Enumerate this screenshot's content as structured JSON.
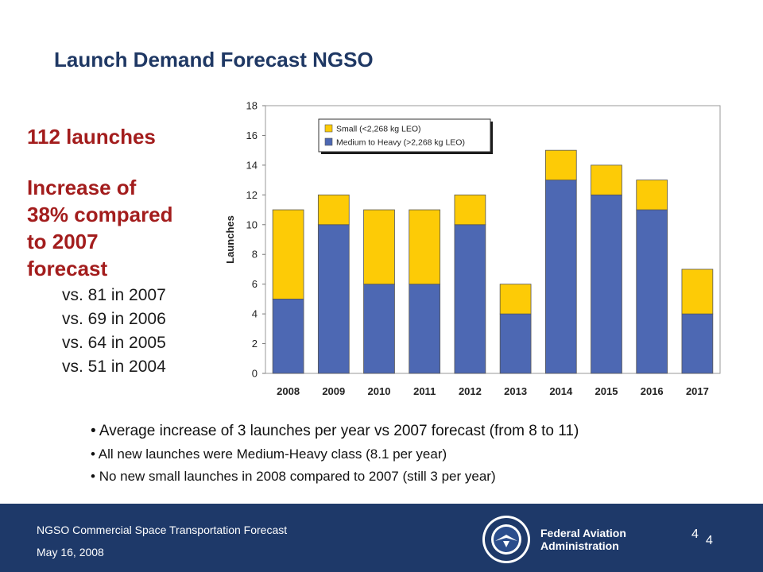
{
  "slide": {
    "title": "Launch Demand Forecast NGSO",
    "headline": "112 launches",
    "increase_text": [
      "Increase of",
      "38% compared",
      "to 2007",
      "forecast"
    ],
    "comparisons": [
      "vs. 81 in 2007",
      "vs. 69 in 2006",
      "vs. 64 in 2005",
      "vs. 51 in 2004"
    ],
    "bullets": [
      "Average increase of 3 launches per year vs 2007 forecast (from 8 to 11)",
      "All new launches were Medium-Heavy class  (8.1 per year)",
      "No new small launches in 2008 compared to 2007 (still 3 per year)"
    ]
  },
  "footer": {
    "presentation_title": "NGSO Commercial Space Transportation Forecast",
    "date": "May 16, 2008",
    "agency": [
      "Federal Aviation",
      "Administration"
    ],
    "page_number": "4",
    "page_number_duplicate": "4"
  },
  "colors": {
    "title": "#1f3864",
    "highlight_red": "#a31d1d",
    "footer_bg": "#1e3969",
    "small_series": "#fdcb06",
    "medium_heavy_series": "#4d68b3"
  },
  "chart_data": {
    "type": "bar",
    "stacked": true,
    "categories": [
      "2008",
      "2009",
      "2010",
      "2011",
      "2012",
      "2013",
      "2014",
      "2015",
      "2016",
      "2017"
    ],
    "series": [
      {
        "name": "Medium to Heavy (>2,268 kg LEO)",
        "values": [
          5,
          10,
          6,
          6,
          10,
          4,
          13,
          12,
          11,
          4
        ],
        "color": "#4d68b3"
      },
      {
        "name": "Small (<2,268 kg LEO)",
        "values": [
          6,
          2,
          5,
          5,
          2,
          2,
          2,
          2,
          2,
          3
        ],
        "color": "#fdcb06"
      }
    ],
    "title": "",
    "xlabel": "",
    "ylabel": "Launches",
    "ylim": [
      0,
      18
    ],
    "yticks": [
      0,
      2,
      4,
      6,
      8,
      10,
      12,
      14,
      16,
      18
    ],
    "grid": false,
    "legend_placement": "top-left"
  }
}
